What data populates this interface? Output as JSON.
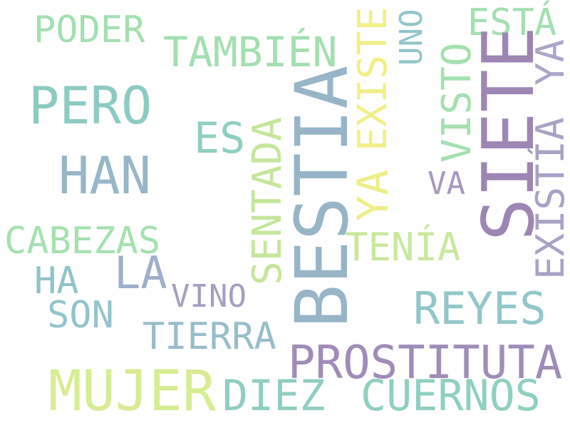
{
  "word_cloud": {
    "words": [
      {
        "text": "PODER",
        "color": "#a3dfb0"
      },
      {
        "text": "TAMBIÉN",
        "color": "#a3dfb0"
      },
      {
        "text": "PERO",
        "color": "#8ccbc1"
      },
      {
        "text": "ES",
        "color": "#8fcfc0"
      },
      {
        "text": "HAN",
        "color": "#97b6c8"
      },
      {
        "text": "CABEZAS",
        "color": "#a5e1b0"
      },
      {
        "text": "LA",
        "color": "#9eaecb"
      },
      {
        "text": "HA",
        "color": "#92c2ca"
      },
      {
        "text": "SON",
        "color": "#92c4cb"
      },
      {
        "text": "VINO",
        "color": "#a39fc2"
      },
      {
        "text": "TIERRA",
        "color": "#98bdc9"
      },
      {
        "text": "MUJER",
        "color": "#d7ec93"
      },
      {
        "text": "DIEZ",
        "color": "#90cec2"
      },
      {
        "text": "CUERNOS",
        "color": "#8fd0c0"
      },
      {
        "text": "PROSTITUTA",
        "color": "#a08cb8"
      },
      {
        "text": "REYES",
        "color": "#92c7ca"
      },
      {
        "text": "TENÍA",
        "color": "#c9e89c"
      },
      {
        "text": "VA",
        "color": "#a698c0"
      },
      {
        "text": "BESTIA",
        "color": "#97b5c7"
      },
      {
        "text": "SENTADA",
        "color": "#c5e69a"
      },
      {
        "text": "YA",
        "color": "#eeee88"
      },
      {
        "text": "EXISTE",
        "color": "#f1ef88"
      },
      {
        "text": "UNO",
        "color": "#92c6c9"
      },
      {
        "text": "VISTO",
        "color": "#a5e0b0"
      },
      {
        "text": "ESTÁ",
        "color": "#a3dfb0"
      },
      {
        "text": "SIETE",
        "color": "#9e86b4"
      },
      {
        "text": "YA",
        "color": "#aaa6c7"
      },
      {
        "text": "EXISTÍA",
        "color": "#a7a3c6"
      }
    ]
  }
}
